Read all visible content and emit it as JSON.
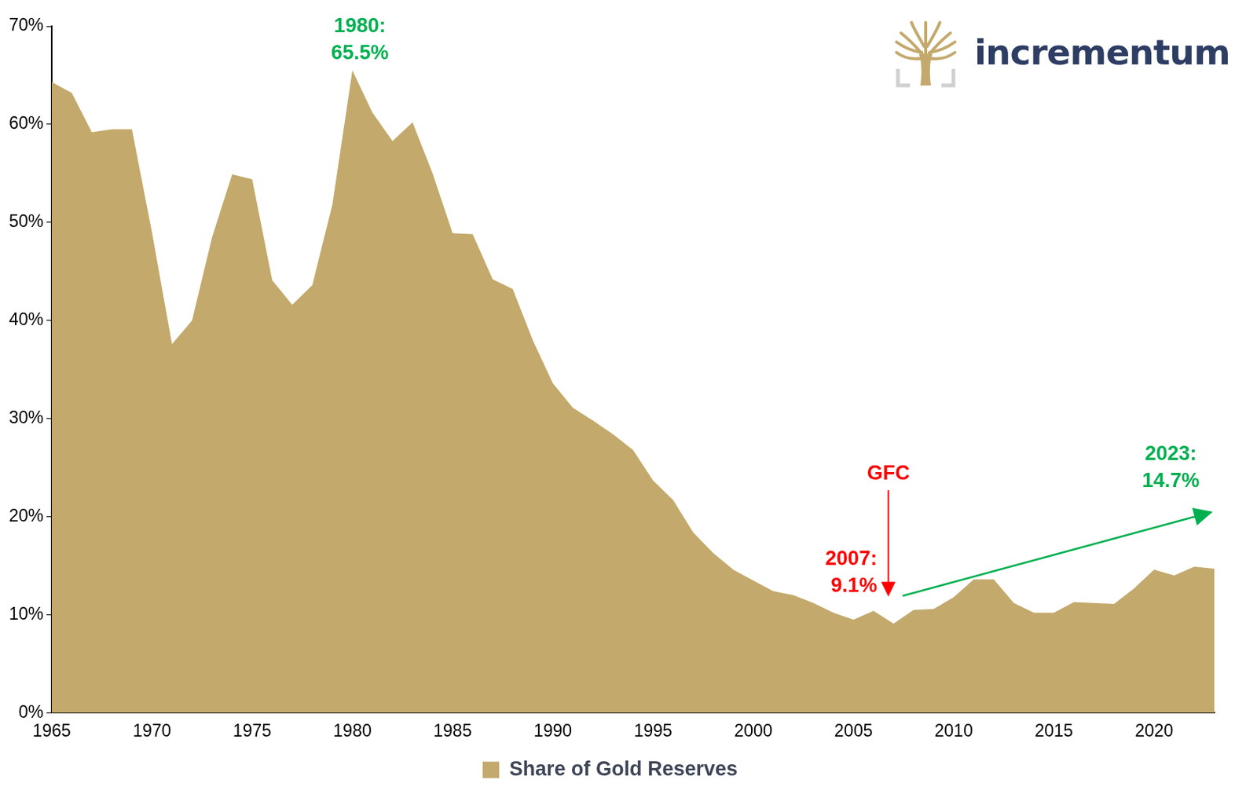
{
  "chart_data": {
    "type": "area",
    "x": [
      1965,
      1966,
      1967,
      1968,
      1969,
      1970,
      1971,
      1972,
      1973,
      1974,
      1975,
      1976,
      1977,
      1978,
      1979,
      1980,
      1981,
      1982,
      1983,
      1984,
      1985,
      1986,
      1987,
      1988,
      1989,
      1990,
      1991,
      1992,
      1993,
      1994,
      1995,
      1996,
      1997,
      1998,
      1999,
      2000,
      2001,
      2002,
      2003,
      2004,
      2005,
      2006,
      2007,
      2008,
      2009,
      2010,
      2011,
      2012,
      2013,
      2014,
      2015,
      2016,
      2017,
      2018,
      2019,
      2020,
      2021,
      2022,
      2023
    ],
    "series": [
      {
        "name": "Share of Gold Reserves",
        "color": "#c3a96c",
        "values": [
          64.3,
          63.2,
          59.2,
          59.5,
          59.5,
          49.0,
          37.6,
          40.0,
          48.5,
          54.9,
          54.4,
          44.1,
          41.6,
          43.6,
          51.8,
          65.5,
          61.2,
          58.3,
          60.2,
          55.0,
          48.9,
          48.8,
          44.2,
          43.2,
          38.0,
          33.6,
          31.1,
          29.8,
          28.4,
          26.8,
          23.7,
          21.7,
          18.4,
          16.3,
          14.6,
          13.5,
          12.4,
          12.0,
          11.2,
          10.2,
          9.5,
          10.4,
          9.1,
          10.5,
          10.6,
          11.8,
          13.6,
          13.6,
          11.2,
          10.2,
          10.2,
          11.3,
          11.2,
          11.1,
          12.7,
          14.6,
          14.0,
          14.9,
          14.7
        ]
      }
    ],
    "xlim": [
      1965,
      2023
    ],
    "xticks": [
      1965,
      1970,
      1975,
      1980,
      1985,
      1990,
      1995,
      2000,
      2005,
      2010,
      2015,
      2020
    ],
    "ylim": [
      0,
      70
    ],
    "yticks": [
      {
        "value": 0,
        "label": "0%"
      },
      {
        "value": 10,
        "label": "10%"
      },
      {
        "value": 20,
        "label": "20%"
      },
      {
        "value": 30,
        "label": "30%"
      },
      {
        "value": 40,
        "label": "40%"
      },
      {
        "value": 50,
        "label": "50%"
      },
      {
        "value": 60,
        "label": "60%"
      },
      {
        "value": 70,
        "label": "70%"
      }
    ],
    "grid": false,
    "legend": "bottom",
    "annotations": [
      {
        "text": [
          "1980:",
          "65.5%"
        ],
        "color": "#00b050",
        "x": 1980,
        "y": 65.5,
        "position": "above",
        "marker": "none"
      },
      {
        "text": [
          "GFC"
        ],
        "color": "#ff0000",
        "x": 2007,
        "y": 9.1,
        "position": "above",
        "marker": "down_arrow"
      },
      {
        "text": [
          "2007:",
          "9.1%"
        ],
        "color": "#ff0000",
        "x": 2007,
        "y": 9.1,
        "position": "left",
        "marker": "none"
      },
      {
        "text": [
          "2023:",
          "14.7%"
        ],
        "color": "#00b050",
        "x": 2023,
        "y": 14.7,
        "position": "above",
        "marker": "trend_arrow"
      }
    ]
  },
  "logo": {
    "text": "incrementum"
  }
}
